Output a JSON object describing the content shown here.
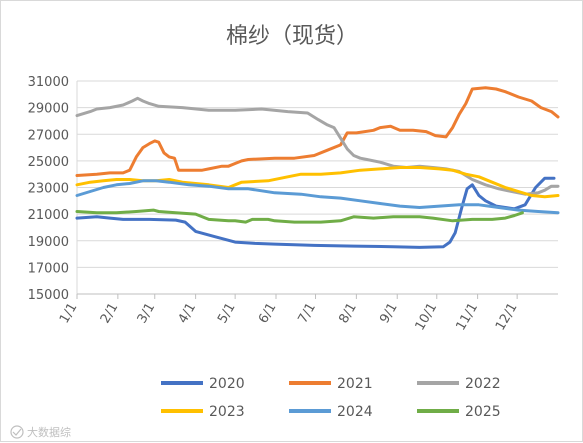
{
  "chart_data": {
    "type": "line",
    "title": "棉纱（现货）",
    "xlabel": "",
    "ylabel": "",
    "ylim": [
      15000,
      31000
    ],
    "yticks": [
      15000,
      17000,
      19000,
      21000,
      23000,
      25000,
      27000,
      29000,
      31000
    ],
    "xlim": [
      0,
      365
    ],
    "xtick_labels": [
      "1/1",
      "2/1",
      "3/1",
      "4/1",
      "5/1",
      "6/1",
      "7/1",
      "8/1",
      "9/1",
      "10/1",
      "11/1",
      "12/1"
    ],
    "xtick_days": [
      0,
      31,
      59,
      90,
      120,
      151,
      181,
      212,
      243,
      273,
      304,
      334
    ],
    "grid": "horizontal",
    "legend_position": "bottom",
    "series": [
      {
        "name": "2020",
        "color": "#4472c4",
        "points": [
          [
            0,
            20700
          ],
          [
            15,
            20800
          ],
          [
            25,
            20700
          ],
          [
            35,
            20600
          ],
          [
            55,
            20600
          ],
          [
            75,
            20550
          ],
          [
            82,
            20400
          ],
          [
            90,
            19700
          ],
          [
            105,
            19300
          ],
          [
            120,
            18900
          ],
          [
            135,
            18800
          ],
          [
            150,
            18750
          ],
          [
            180,
            18650
          ],
          [
            210,
            18600
          ],
          [
            240,
            18550
          ],
          [
            260,
            18500
          ],
          [
            278,
            18550
          ],
          [
            283,
            18900
          ],
          [
            287,
            19600
          ],
          [
            292,
            21500
          ],
          [
            296,
            22900
          ],
          [
            300,
            23200
          ],
          [
            305,
            22400
          ],
          [
            310,
            22000
          ],
          [
            318,
            21600
          ],
          [
            332,
            21400
          ],
          [
            340,
            21700
          ],
          [
            348,
            23000
          ],
          [
            355,
            23700
          ],
          [
            362,
            23700
          ]
        ]
      },
      {
        "name": "2021",
        "color": "#ed7d31",
        "points": [
          [
            0,
            23900
          ],
          [
            15,
            24000
          ],
          [
            25,
            24100
          ],
          [
            35,
            24100
          ],
          [
            40,
            24300
          ],
          [
            45,
            25300
          ],
          [
            50,
            26000
          ],
          [
            55,
            26300
          ],
          [
            59,
            26500
          ],
          [
            62,
            26400
          ],
          [
            66,
            25600
          ],
          [
            70,
            25300
          ],
          [
            74,
            25200
          ],
          [
            77,
            24300
          ],
          [
            95,
            24300
          ],
          [
            100,
            24400
          ],
          [
            110,
            24600
          ],
          [
            115,
            24600
          ],
          [
            120,
            24800
          ],
          [
            125,
            25000
          ],
          [
            130,
            25100
          ],
          [
            150,
            25200
          ],
          [
            165,
            25200
          ],
          [
            180,
            25400
          ],
          [
            190,
            25800
          ],
          [
            200,
            26200
          ],
          [
            205,
            27100
          ],
          [
            212,
            27100
          ],
          [
            225,
            27300
          ],
          [
            230,
            27500
          ],
          [
            238,
            27600
          ],
          [
            245,
            27300
          ],
          [
            255,
            27300
          ],
          [
            265,
            27200
          ],
          [
            272,
            26900
          ],
          [
            280,
            26800
          ],
          [
            285,
            27500
          ],
          [
            290,
            28500
          ],
          [
            295,
            29300
          ],
          [
            300,
            30400
          ],
          [
            310,
            30500
          ],
          [
            318,
            30400
          ],
          [
            325,
            30200
          ],
          [
            335,
            29800
          ],
          [
            345,
            29500
          ],
          [
            352,
            29000
          ],
          [
            360,
            28700
          ],
          [
            365,
            28300
          ]
        ]
      },
      {
        "name": "2022",
        "color": "#a5a5a5",
        "points": [
          [
            0,
            28400
          ],
          [
            10,
            28700
          ],
          [
            15,
            28900
          ],
          [
            25,
            29000
          ],
          [
            35,
            29200
          ],
          [
            42,
            29500
          ],
          [
            46,
            29700
          ],
          [
            50,
            29500
          ],
          [
            55,
            29300
          ],
          [
            62,
            29100
          ],
          [
            80,
            29000
          ],
          [
            100,
            28800
          ],
          [
            120,
            28800
          ],
          [
            140,
            28900
          ],
          [
            160,
            28700
          ],
          [
            175,
            28600
          ],
          [
            183,
            28100
          ],
          [
            190,
            27700
          ],
          [
            195,
            27500
          ],
          [
            200,
            26700
          ],
          [
            205,
            25900
          ],
          [
            210,
            25400
          ],
          [
            215,
            25200
          ],
          [
            220,
            25100
          ],
          [
            230,
            24900
          ],
          [
            240,
            24600
          ],
          [
            250,
            24500
          ],
          [
            260,
            24600
          ],
          [
            270,
            24500
          ],
          [
            280,
            24400
          ],
          [
            290,
            24200
          ],
          [
            300,
            23600
          ],
          [
            310,
            23200
          ],
          [
            320,
            22900
          ],
          [
            330,
            22700
          ],
          [
            340,
            22500
          ],
          [
            350,
            22600
          ],
          [
            355,
            22800
          ],
          [
            360,
            23100
          ],
          [
            365,
            23100
          ]
        ]
      },
      {
        "name": "2023",
        "color": "#ffc000",
        "points": [
          [
            0,
            23200
          ],
          [
            10,
            23400
          ],
          [
            20,
            23500
          ],
          [
            30,
            23600
          ],
          [
            40,
            23600
          ],
          [
            50,
            23500
          ],
          [
            60,
            23500
          ],
          [
            70,
            23600
          ],
          [
            80,
            23400
          ],
          [
            90,
            23300
          ],
          [
            100,
            23200
          ],
          [
            115,
            23000
          ],
          [
            125,
            23400
          ],
          [
            145,
            23500
          ],
          [
            160,
            23800
          ],
          [
            170,
            24000
          ],
          [
            185,
            24000
          ],
          [
            200,
            24100
          ],
          [
            215,
            24300
          ],
          [
            230,
            24400
          ],
          [
            245,
            24500
          ],
          [
            260,
            24500
          ],
          [
            275,
            24400
          ],
          [
            285,
            24300
          ],
          [
            295,
            24000
          ],
          [
            305,
            23800
          ],
          [
            315,
            23400
          ],
          [
            325,
            23000
          ],
          [
            335,
            22700
          ],
          [
            345,
            22400
          ],
          [
            355,
            22300
          ],
          [
            365,
            22400
          ]
        ]
      },
      {
        "name": "2024",
        "color": "#5b9bd5",
        "points": [
          [
            0,
            22400
          ],
          [
            10,
            22700
          ],
          [
            20,
            23000
          ],
          [
            30,
            23200
          ],
          [
            40,
            23300
          ],
          [
            50,
            23500
          ],
          [
            60,
            23500
          ],
          [
            70,
            23400
          ],
          [
            85,
            23200
          ],
          [
            100,
            23100
          ],
          [
            115,
            22900
          ],
          [
            130,
            22900
          ],
          [
            150,
            22600
          ],
          [
            170,
            22500
          ],
          [
            185,
            22300
          ],
          [
            200,
            22200
          ],
          [
            215,
            22000
          ],
          [
            230,
            21800
          ],
          [
            245,
            21600
          ],
          [
            260,
            21500
          ],
          [
            275,
            21600
          ],
          [
            290,
            21700
          ],
          [
            305,
            21700
          ],
          [
            320,
            21500
          ],
          [
            335,
            21300
          ],
          [
            350,
            21200
          ],
          [
            365,
            21100
          ]
        ]
      },
      {
        "name": "2025",
        "color": "#70ad47",
        "points": [
          [
            0,
            21200
          ],
          [
            15,
            21100
          ],
          [
            30,
            21100
          ],
          [
            45,
            21200
          ],
          [
            58,
            21300
          ],
          [
            62,
            21200
          ],
          [
            75,
            21100
          ],
          [
            90,
            21000
          ],
          [
            100,
            20600
          ],
          [
            115,
            20500
          ],
          [
            120,
            20500
          ],
          [
            128,
            20400
          ],
          [
            133,
            20600
          ],
          [
            145,
            20600
          ],
          [
            150,
            20500
          ],
          [
            165,
            20400
          ],
          [
            185,
            20400
          ],
          [
            200,
            20500
          ],
          [
            210,
            20800
          ],
          [
            225,
            20700
          ],
          [
            240,
            20800
          ],
          [
            260,
            20800
          ],
          [
            270,
            20700
          ],
          [
            285,
            20500
          ],
          [
            300,
            20600
          ],
          [
            315,
            20600
          ],
          [
            325,
            20700
          ],
          [
            332,
            20900
          ],
          [
            338,
            21100
          ]
        ]
      }
    ]
  },
  "watermark": "大数据综"
}
